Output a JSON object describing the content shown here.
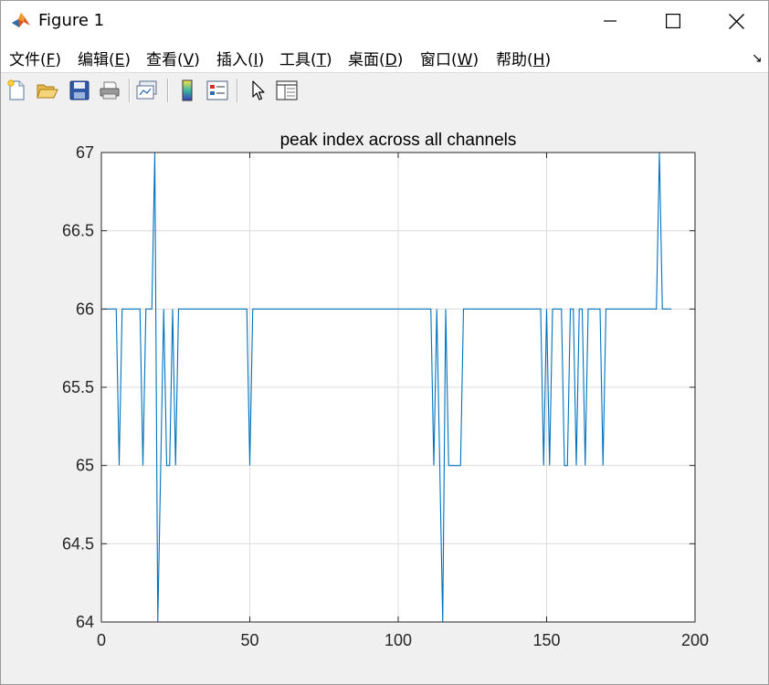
{
  "window": {
    "title": "Figure 1",
    "icons": {
      "app": "matlab-logo-icon",
      "minimize": "minimize-icon",
      "maximize": "maximize-icon",
      "close": "close-icon"
    }
  },
  "menubar": {
    "items": [
      {
        "label": "文件(",
        "mnemonic": "F",
        "suffix": ")"
      },
      {
        "label": "编辑(",
        "mnemonic": "E",
        "suffix": ")"
      },
      {
        "label": "查看(",
        "mnemonic": "V",
        "suffix": ")"
      },
      {
        "label": "插入(",
        "mnemonic": "I",
        "suffix": ")"
      },
      {
        "label": "工具(",
        "mnemonic": "T",
        "suffix": ")"
      },
      {
        "label": "桌面(",
        "mnemonic": "D",
        "suffix": ")"
      },
      {
        "label": "窗口(",
        "mnemonic": "W",
        "suffix": ")"
      },
      {
        "label": "帮助(",
        "mnemonic": "H",
        "suffix": ")"
      }
    ],
    "dock_glyph": "↘"
  },
  "toolbar": {
    "buttons": [
      "new-figure-icon",
      "open-file-icon",
      "save-icon",
      "print-icon",
      "link-plot-icon",
      "colorbar-icon",
      "legend-icon",
      "pointer-icon",
      "property-inspector-icon"
    ]
  },
  "colors": {
    "line": "#0072bd",
    "grid": "#dcdcdc",
    "axes_bg": "#ffffff",
    "figure_bg": "#f0f0f0"
  },
  "chart_data": {
    "type": "line",
    "title": "peak index across all channels",
    "xlabel": "",
    "ylabel": "",
    "xlim": [
      0,
      200
    ],
    "ylim": [
      64,
      67
    ],
    "xticks": [
      0,
      50,
      100,
      150,
      200
    ],
    "yticks": [
      64,
      64.5,
      65,
      65.5,
      66,
      66.5,
      67
    ],
    "ytick_labels": [
      "64",
      "64.5",
      "65",
      "65.5",
      "66",
      "66.5",
      "67"
    ],
    "xtick_labels": [
      "0",
      "50",
      "100",
      "150",
      "200"
    ],
    "grid": true,
    "series": [
      {
        "x": [
          1,
          2,
          3,
          4,
          5,
          6,
          7,
          8,
          9,
          10,
          11,
          12,
          13,
          14,
          15,
          16,
          17,
          18,
          19,
          20,
          21,
          22,
          23,
          24,
          25,
          26,
          27,
          28,
          29,
          30,
          31,
          32,
          33,
          34,
          35,
          36,
          37,
          38,
          39,
          40,
          41,
          42,
          43,
          44,
          45,
          46,
          47,
          48,
          49,
          50,
          51,
          52,
          53,
          54,
          55,
          56,
          57,
          58,
          59,
          60,
          61,
          62,
          63,
          64,
          65,
          66,
          67,
          68,
          69,
          70,
          71,
          72,
          73,
          74,
          75,
          76,
          77,
          78,
          79,
          80,
          81,
          82,
          83,
          84,
          85,
          86,
          87,
          88,
          89,
          90,
          91,
          92,
          93,
          94,
          95,
          96,
          97,
          98,
          99,
          100,
          101,
          102,
          103,
          104,
          105,
          106,
          107,
          108,
          109,
          110,
          111,
          112,
          113,
          114,
          115,
          116,
          117,
          118,
          119,
          120,
          121,
          122,
          123,
          124,
          125,
          126,
          127,
          128,
          129,
          130,
          131,
          132,
          133,
          134,
          135,
          136,
          137,
          138,
          139,
          140,
          141,
          142,
          143,
          144,
          145,
          146,
          147,
          148,
          149,
          150,
          151,
          152,
          153,
          154,
          155,
          156,
          157,
          158,
          159,
          160,
          161,
          162,
          163,
          164,
          165,
          166,
          167,
          168,
          169,
          170,
          171,
          172,
          173,
          174,
          175,
          176,
          177,
          178,
          179,
          180,
          181,
          182,
          183,
          184,
          185,
          186,
          187,
          188,
          189,
          190,
          191,
          192
        ],
        "y": [
          66,
          66,
          66,
          66,
          66,
          65,
          66,
          66,
          66,
          66,
          66,
          66,
          66,
          65,
          66,
          66,
          66,
          67,
          64,
          65,
          66,
          65,
          65,
          66,
          65,
          66,
          66,
          66,
          66,
          66,
          66,
          66,
          66,
          66,
          66,
          66,
          66,
          66,
          66,
          66,
          66,
          66,
          66,
          66,
          66,
          66,
          66,
          66,
          66,
          65,
          66,
          66,
          66,
          66,
          66,
          66,
          66,
          66,
          66,
          66,
          66,
          66,
          66,
          66,
          66,
          66,
          66,
          66,
          66,
          66,
          66,
          66,
          66,
          66,
          66,
          66,
          66,
          66,
          66,
          66,
          66,
          66,
          66,
          66,
          66,
          66,
          66,
          66,
          66,
          66,
          66,
          66,
          66,
          66,
          66,
          66,
          66,
          66,
          66,
          66,
          66,
          66,
          66,
          66,
          66,
          66,
          66,
          66,
          66,
          66,
          66,
          65,
          66,
          65,
          64,
          66,
          65,
          65,
          65,
          65,
          65,
          66,
          66,
          66,
          66,
          66,
          66,
          66,
          66,
          66,
          66,
          66,
          66,
          66,
          66,
          66,
          66,
          66,
          66,
          66,
          66,
          66,
          66,
          66,
          66,
          66,
          66,
          66,
          65,
          66,
          65,
          66,
          66,
          66,
          66,
          65,
          65,
          66,
          66,
          65,
          66,
          66,
          65,
          66,
          66,
          66,
          66,
          66,
          65,
          66,
          66,
          66,
          66,
          66,
          66,
          66,
          66,
          66,
          66,
          66,
          66,
          66,
          66,
          66,
          66,
          66,
          66,
          67,
          66,
          66,
          66,
          66
        ]
      }
    ]
  }
}
